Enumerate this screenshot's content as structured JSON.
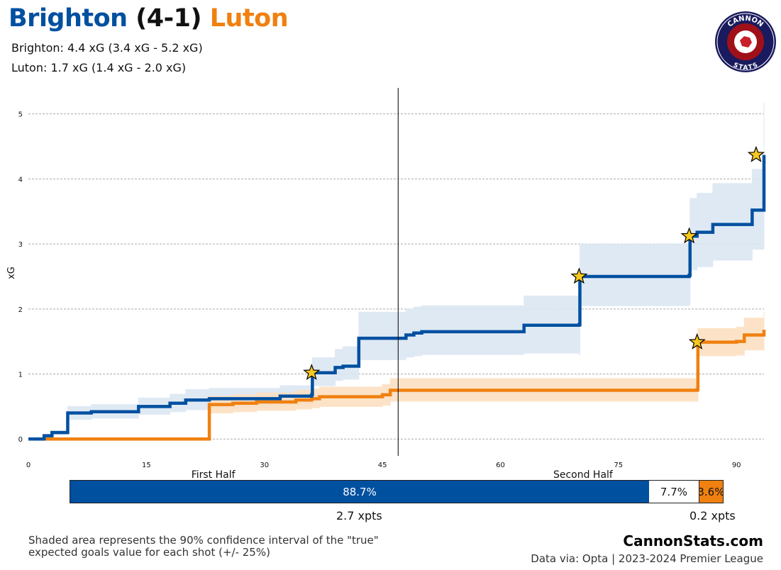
{
  "header": {
    "home_team": "Brighton",
    "score": "(4-1)",
    "away_team": "Luton",
    "home_color": "#0050a0",
    "away_color": "#f08010",
    "home_line": "Brighton: 4.4 xG (3.4 xG - 5.2 xG)",
    "away_line": "Luton: 1.7 xG (1.4 xG - 2.0 xG)"
  },
  "logo": {
    "top_text": "CANNON",
    "bottom_text": "STATS",
    "ring_color": "#1a1a5e",
    "inner_color": "#a01018"
  },
  "chart_data": {
    "type": "line",
    "xlabel": "",
    "ylabel": "xG",
    "xlim": [
      0,
      93.5
    ],
    "ylim": [
      -0.15,
      5.4
    ],
    "xticks": [
      0,
      15,
      30,
      45,
      60,
      75,
      90
    ],
    "yticks": [
      0,
      1,
      2,
      3,
      4,
      5
    ],
    "grid": "horizontal-dashed",
    "halftime_x": 47,
    "period_labels": [
      {
        "label": "First Half",
        "x": 23.5
      },
      {
        "label": "Second Half",
        "x": 70.5
      }
    ],
    "series": [
      {
        "name": "Brighton",
        "color": "#0050a0",
        "band_color": "#dce7f3",
        "step_x": [
          0,
          2,
          3,
          5,
          8,
          14,
          18,
          20,
          23,
          32,
          36,
          36.1,
          39,
          40,
          42,
          48,
          49,
          50,
          63,
          70,
          70.1,
          84,
          84.1,
          85,
          87,
          92,
          93.5
        ],
        "step_y": [
          0,
          0.05,
          0.1,
          0.4,
          0.42,
          0.5,
          0.55,
          0.6,
          0.62,
          0.66,
          0.68,
          1.02,
          1.1,
          1.12,
          1.55,
          1.6,
          1.63,
          1.65,
          1.75,
          1.76,
          2.5,
          2.52,
          3.12,
          3.18,
          3.3,
          3.52,
          4.37
        ],
        "band_low": [
          0,
          0.03,
          0.07,
          0.3,
          0.32,
          0.38,
          0.42,
          0.45,
          0.48,
          0.52,
          0.54,
          0.82,
          0.9,
          0.92,
          1.22,
          1.26,
          1.28,
          1.3,
          1.32,
          1.3,
          2.05,
          2.07,
          2.6,
          2.65,
          2.75,
          2.92,
          3.45
        ],
        "band_high": [
          0,
          0.07,
          0.13,
          0.5,
          0.53,
          0.63,
          0.69,
          0.76,
          0.78,
          0.82,
          0.86,
          1.25,
          1.38,
          1.42,
          1.95,
          2.0,
          2.03,
          2.05,
          2.2,
          2.2,
          3.0,
          3.02,
          3.7,
          3.78,
          3.93,
          4.15,
          5.18
        ],
        "goals": [
          {
            "x": 36,
            "y": 1.02
          },
          {
            "x": 70,
            "y": 2.5
          },
          {
            "x": 84,
            "y": 3.12
          },
          {
            "x": 92.5,
            "y": 4.37
          }
        ]
      },
      {
        "name": "Luton",
        "color": "#f08010",
        "band_color": "#fce0c2",
        "step_x": [
          0,
          23,
          26,
          29,
          34,
          36,
          37,
          45,
          46,
          85,
          85.1,
          90,
          91,
          93.5
        ],
        "step_y": [
          0,
          0.53,
          0.55,
          0.57,
          0.6,
          0.62,
          0.65,
          0.68,
          0.75,
          0.76,
          1.49,
          1.5,
          1.6,
          1.68
        ],
        "band_low": [
          0,
          0.4,
          0.42,
          0.44,
          0.46,
          0.48,
          0.5,
          0.52,
          0.58,
          0.58,
          1.28,
          1.29,
          1.37,
          1.44
        ],
        "band_high": [
          0,
          0.66,
          0.68,
          0.71,
          0.75,
          0.77,
          0.8,
          0.84,
          0.93,
          0.94,
          1.7,
          1.72,
          1.86,
          1.96
        ],
        "goals": [
          {
            "x": 85,
            "y": 1.49
          }
        ]
      }
    ]
  },
  "win_probability": {
    "home": 88.7,
    "draw": 7.7,
    "away": 3.6,
    "home_label": "88.7%",
    "draw_label": "7.7%",
    "away_label": "3.6%"
  },
  "xpts": {
    "home": "2.7 xpts",
    "away": "0.2 xpts"
  },
  "footer": {
    "note": "Shaded area represents the 90% confidence interval of the \"true\" expected goals value for each shot (+/- 25%)",
    "brand": "CannonStats.com",
    "source": "Data via: Opta | 2023-2024 Premier League"
  }
}
